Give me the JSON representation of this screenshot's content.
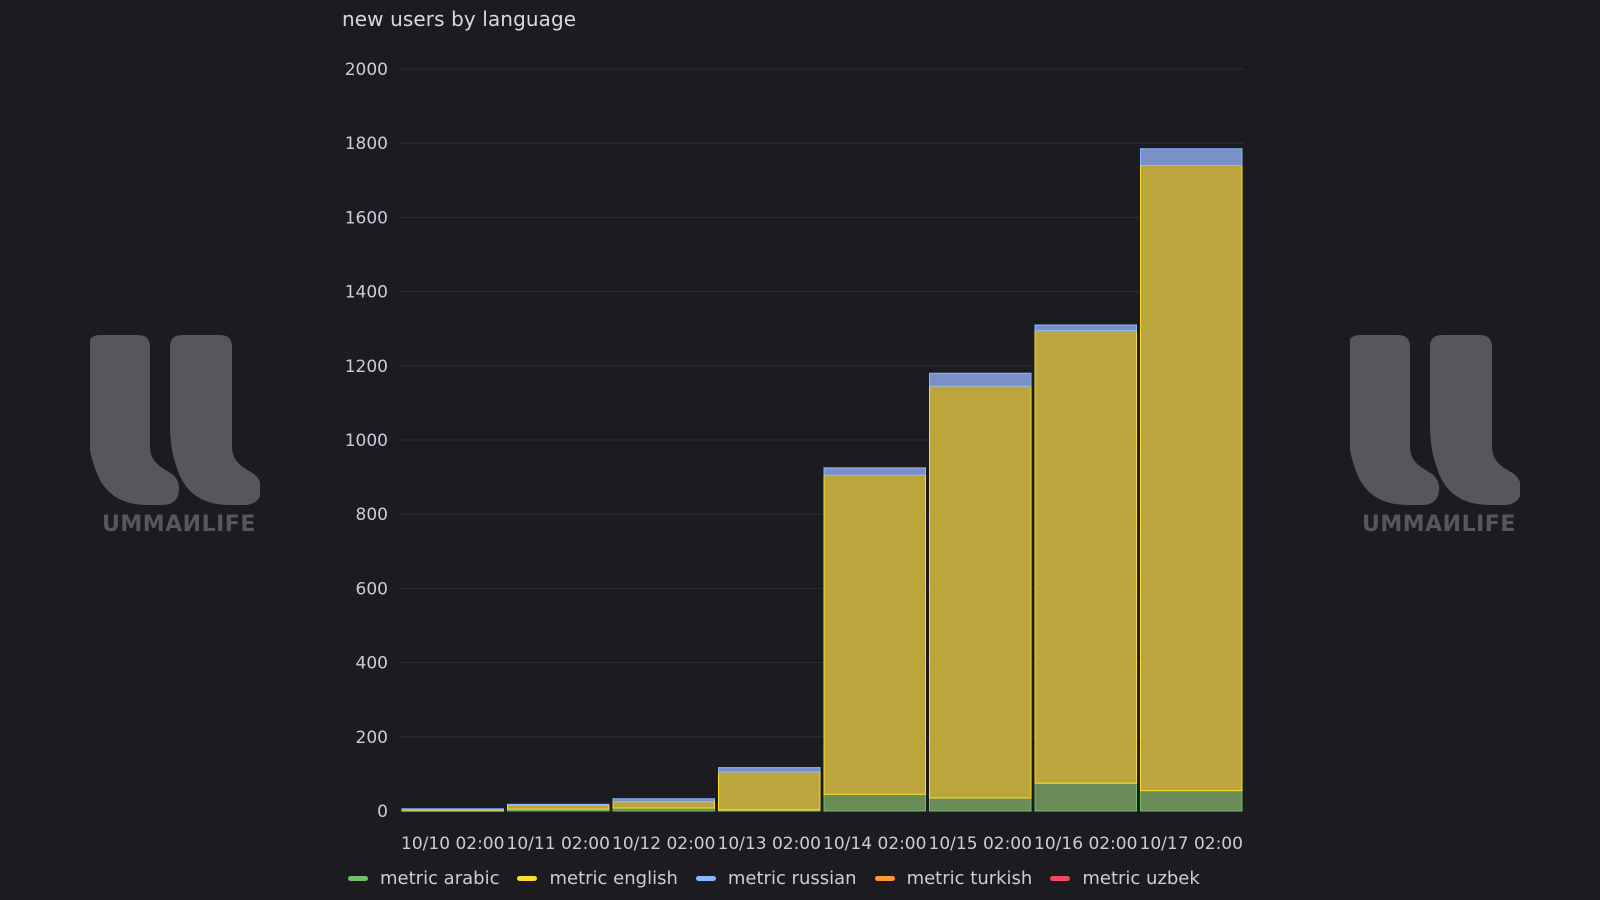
{
  "panel": {
    "title": "new users by language"
  },
  "watermark": {
    "text": "UMMAИLIFE",
    "color": "#56565c"
  },
  "chart_data": {
    "type": "bar",
    "stacked": true,
    "title": "new users by language",
    "xlabel": "",
    "ylabel": "",
    "ylim": [
      0,
      2000
    ],
    "yticks": [
      0,
      200,
      400,
      600,
      800,
      1000,
      1200,
      1400,
      1600,
      1800,
      2000
    ],
    "grid": true,
    "legend_position": "bottom-left",
    "categories": [
      "10/10 02:00",
      "10/11 02:00",
      "10/12 02:00",
      "10/13 02:00",
      "10/14 02:00",
      "10/15 02:00",
      "10/16 02:00",
      "10/17 02:00"
    ],
    "series": [
      {
        "name": "metric arabic",
        "color": "#73bf69",
        "values": [
          2,
          5,
          8,
          3,
          45,
          35,
          75,
          55
        ]
      },
      {
        "name": "metric english",
        "color": "#fade2a",
        "values": [
          3,
          10,
          17,
          102,
          860,
          1110,
          1220,
          1685
        ]
      },
      {
        "name": "metric russian",
        "color": "#8ab8ff",
        "values": [
          1,
          3,
          8,
          12,
          20,
          35,
          15,
          45
        ]
      },
      {
        "name": "metric turkish",
        "color": "#ff9830",
        "values": [
          0,
          0,
          0,
          0,
          0,
          0,
          0,
          0
        ]
      },
      {
        "name": "metric uzbek",
        "color": "#f2495c",
        "values": [
          0,
          0,
          0,
          0,
          0,
          0,
          0,
          0
        ]
      }
    ],
    "fill_colors": {
      "metric arabic": "#6a8d58",
      "metric english": "#bca53d",
      "metric russian": "#7c90c8"
    }
  }
}
